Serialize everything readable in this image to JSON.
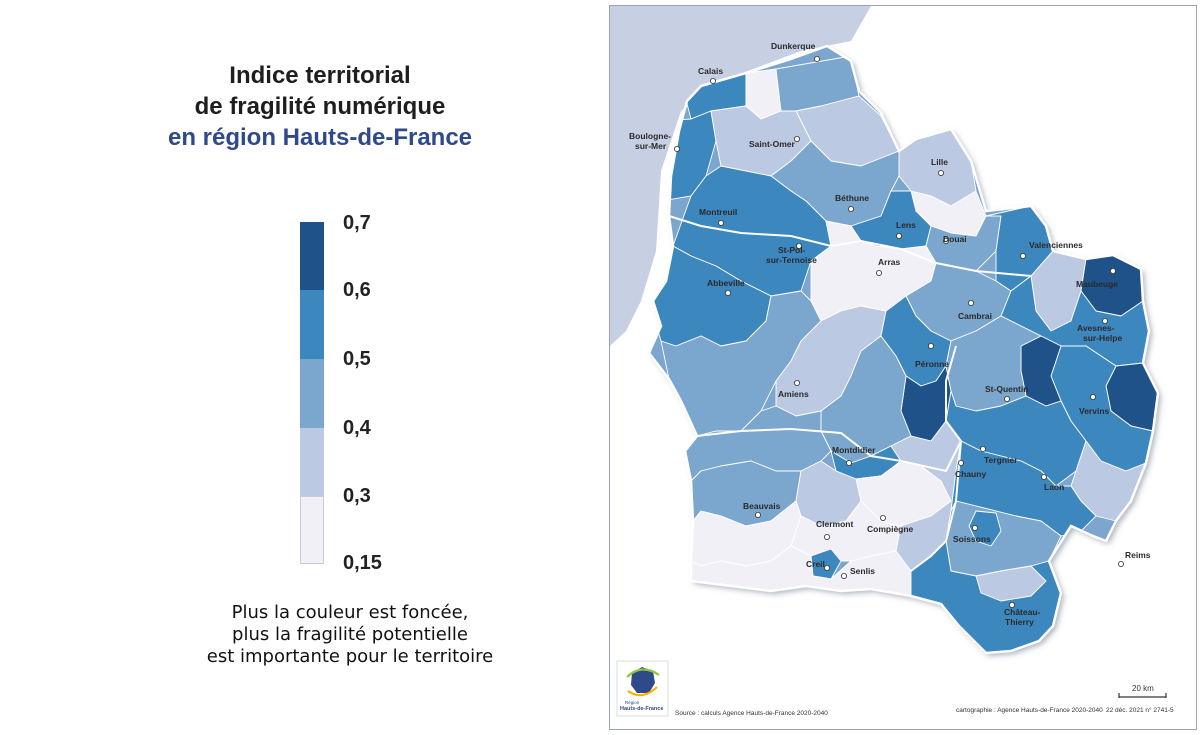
{
  "title": {
    "line1": "Indice territorial",
    "line2": "de fragilité numérique",
    "line3": "en région Hauts-de-France"
  },
  "legend": {
    "classes": [
      {
        "label": "0,7",
        "color": "#1f5288"
      },
      {
        "label": "0,6",
        "color": "#3d87bf"
      },
      {
        "label": "0,5",
        "color": "#7ba6cd"
      },
      {
        "label": "0,4",
        "color": "#bcc9e2"
      },
      {
        "label": "0,3",
        "color": "#f1f0f7"
      }
    ],
    "last_label": "0,15"
  },
  "caption": {
    "line1": "Plus la couleur est foncée,",
    "line2": "plus la fragilité potentielle",
    "line3": "est importante pour le territoire"
  },
  "map": {
    "colors": {
      "sea": "#c7d0e2",
      "outside": "#ffffff",
      "class_07": "#1f5288",
      "class_06": "#3d87bf",
      "class_05": "#7ba6cd",
      "class_04": "#bcc9e2",
      "class_03": "#f1f0f7"
    },
    "cities": {
      "dunkerque": "Dunkerque",
      "calais": "Calais",
      "boulogne_1": "Boulogne-",
      "boulogne_2": "sur-Mer",
      "saint_omer": "Saint-Omer",
      "lille": "Lille",
      "bethune": "Béthune",
      "montreuil": "Montreuil",
      "lens": "Lens",
      "douai": "Douai",
      "valenciennes": "Valenciennes",
      "stpol_1": "St-Pol-",
      "stpol_2": "sur-Ternoise",
      "arras": "Arras",
      "maubeuge": "Maubeuge",
      "abbeville": "Abbeville",
      "cambrai": "Cambrai",
      "avesnes_1": "Avesnes-",
      "avesnes_2": "sur-Helpe",
      "peronne": "Péronne",
      "amiens": "Amiens",
      "saint_quentin": "St-Quentin",
      "vervins": "Vervins",
      "montdidier": "Montdidier",
      "tergnier": "Tergnier",
      "chauny": "Chauny",
      "laon": "Laon",
      "beauvais": "Beauvais",
      "clermont": "Clermont",
      "compiegne": "Compiègne",
      "soissons": "Soissons",
      "reims": "Reims",
      "creil": "Creil",
      "senlis": "Senlis",
      "chateau_1": "Château-",
      "chateau_2": "Thierry"
    },
    "scale_label": "20 km",
    "logo_line1": "Région",
    "logo_line2": "Hauts-de-France",
    "source": "Source : calculs Agence Hauts-de-France 2020-2040",
    "credit": "cartographie : Agence Hauts-de-France 2020-2040",
    "reference": "22 déc. 2021 n° 2741-5"
  }
}
